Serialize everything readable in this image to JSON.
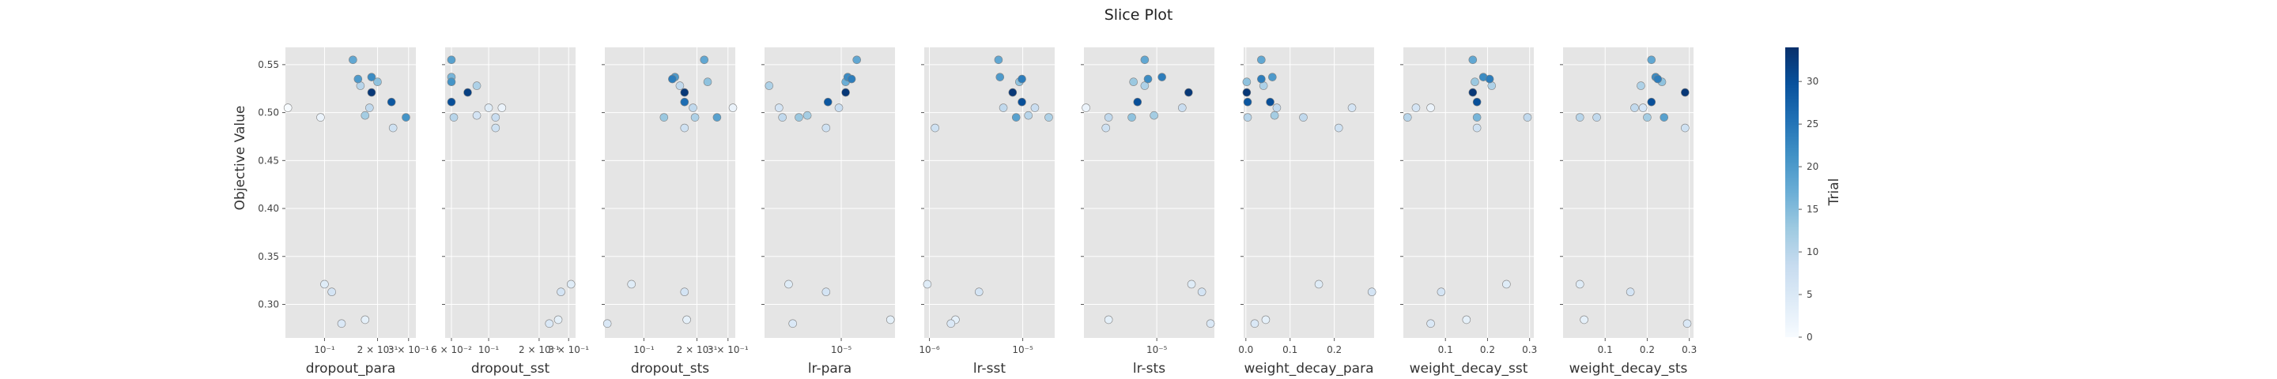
{
  "chart_data": {
    "type": "scatter",
    "title": "Slice Plot",
    "ylabel": "Objective Value",
    "ylim": [
      0.265,
      0.568
    ],
    "y_ticks": [
      0.3,
      0.35,
      0.4,
      0.45,
      0.5,
      0.55
    ],
    "y_tick_labels": [
      "0.30",
      "0.35",
      "0.40",
      "0.45",
      "0.50",
      "0.55"
    ],
    "grid": true,
    "colorbar": {
      "label": "Trial",
      "range": [
        0,
        34
      ],
      "ticks": [
        0,
        5,
        10,
        15,
        20,
        25,
        30
      ],
      "tick_labels": [
        "0",
        "5",
        "10",
        "15",
        "20",
        "25",
        "30"
      ],
      "colors": [
        "#f7fbff",
        "#deebf7",
        "#c6dbef",
        "#9ecae1",
        "#6baed6",
        "#4292c6",
        "#2171b5",
        "#08519c",
        "#08306b"
      ]
    },
    "panels": [
      {
        "xlabel": "dropout_para",
        "scale": "log",
        "xlim": [
          0.06,
          0.33
        ],
        "x_ticks": [
          0.1,
          0.2,
          0.3
        ],
        "x_tick_labels": [
          "10⁻¹",
          "2 × 10⁻¹",
          "3 × 10⁻¹"
        ],
        "points": [
          {
            "x": 0.062,
            "y": 0.505,
            "t": 0
          },
          {
            "x": 0.095,
            "y": 0.495,
            "t": 2
          },
          {
            "x": 0.1,
            "y": 0.321,
            "t": 4
          },
          {
            "x": 0.11,
            "y": 0.313,
            "t": 6
          },
          {
            "x": 0.125,
            "y": 0.28,
            "t": 5
          },
          {
            "x": 0.145,
            "y": 0.555,
            "t": 18
          },
          {
            "x": 0.155,
            "y": 0.535,
            "t": 20
          },
          {
            "x": 0.16,
            "y": 0.528,
            "t": 10
          },
          {
            "x": 0.17,
            "y": 0.497,
            "t": 12
          },
          {
            "x": 0.17,
            "y": 0.284,
            "t": 3
          },
          {
            "x": 0.18,
            "y": 0.505,
            "t": 9
          },
          {
            "x": 0.185,
            "y": 0.537,
            "t": 22
          },
          {
            "x": 0.185,
            "y": 0.521,
            "t": 33
          },
          {
            "x": 0.2,
            "y": 0.532,
            "t": 14
          },
          {
            "x": 0.24,
            "y": 0.511,
            "t": 29
          },
          {
            "x": 0.245,
            "y": 0.484,
            "t": 7
          },
          {
            "x": 0.29,
            "y": 0.495,
            "t": 21
          }
        ]
      },
      {
        "xlabel": "dropout_sst",
        "scale": "log",
        "xlim": [
          0.055,
          0.33
        ],
        "x_ticks": [
          0.06,
          0.1,
          0.2,
          0.3
        ],
        "x_tick_labels": [
          "6 × 10⁻²",
          "10⁻¹",
          "2 × 10⁻¹",
          "3 × 10⁻¹"
        ],
        "points": [
          {
            "x": 0.06,
            "y": 0.555,
            "t": 19
          },
          {
            "x": 0.06,
            "y": 0.537,
            "t": 16
          },
          {
            "x": 0.06,
            "y": 0.532,
            "t": 21
          },
          {
            "x": 0.06,
            "y": 0.511,
            "t": 30
          },
          {
            "x": 0.062,
            "y": 0.495,
            "t": 10
          },
          {
            "x": 0.075,
            "y": 0.521,
            "t": 32
          },
          {
            "x": 0.085,
            "y": 0.528,
            "t": 11
          },
          {
            "x": 0.085,
            "y": 0.497,
            "t": 6
          },
          {
            "x": 0.1,
            "y": 0.505,
            "t": 4
          },
          {
            "x": 0.11,
            "y": 0.495,
            "t": 8
          },
          {
            "x": 0.11,
            "y": 0.484,
            "t": 7
          },
          {
            "x": 0.12,
            "y": 0.505,
            "t": 2
          },
          {
            "x": 0.23,
            "y": 0.28,
            "t": 5
          },
          {
            "x": 0.26,
            "y": 0.284,
            "t": 3
          },
          {
            "x": 0.27,
            "y": 0.313,
            "t": 6
          },
          {
            "x": 0.31,
            "y": 0.321,
            "t": 4
          }
        ]
      },
      {
        "xlabel": "dropout_sts",
        "scale": "log",
        "xlim": [
          0.06,
          0.33
        ],
        "x_ticks": [
          0.1,
          0.2,
          0.3
        ],
        "x_tick_labels": [
          "10⁻¹",
          "2 × 10⁻¹",
          "3 × 10⁻¹"
        ],
        "points": [
          {
            "x": 0.062,
            "y": 0.28,
            "t": 5
          },
          {
            "x": 0.085,
            "y": 0.321,
            "t": 4
          },
          {
            "x": 0.13,
            "y": 0.495,
            "t": 13
          },
          {
            "x": 0.145,
            "y": 0.535,
            "t": 24
          },
          {
            "x": 0.15,
            "y": 0.537,
            "t": 20
          },
          {
            "x": 0.16,
            "y": 0.528,
            "t": 9
          },
          {
            "x": 0.17,
            "y": 0.521,
            "t": 33
          },
          {
            "x": 0.17,
            "y": 0.511,
            "t": 26
          },
          {
            "x": 0.17,
            "y": 0.484,
            "t": 7
          },
          {
            "x": 0.17,
            "y": 0.313,
            "t": 6
          },
          {
            "x": 0.175,
            "y": 0.284,
            "t": 3
          },
          {
            "x": 0.19,
            "y": 0.505,
            "t": 9
          },
          {
            "x": 0.195,
            "y": 0.495,
            "t": 11
          },
          {
            "x": 0.22,
            "y": 0.555,
            "t": 18
          },
          {
            "x": 0.23,
            "y": 0.532,
            "t": 14
          },
          {
            "x": 0.26,
            "y": 0.495,
            "t": 19
          },
          {
            "x": 0.32,
            "y": 0.505,
            "t": 2
          }
        ]
      },
      {
        "xlabel": "lr-para",
        "scale": "log",
        "xlim": [
          1.9e-06,
          3.2e-05
        ],
        "x_ticks": [
          1e-05
        ],
        "x_tick_labels": [
          "10⁻⁵"
        ],
        "points": [
          {
            "x": 2.1e-06,
            "y": 0.528,
            "t": 11
          },
          {
            "x": 2.6e-06,
            "y": 0.505,
            "t": 6
          },
          {
            "x": 2.8e-06,
            "y": 0.495,
            "t": 9
          },
          {
            "x": 3.2e-06,
            "y": 0.321,
            "t": 4
          },
          {
            "x": 3.5e-06,
            "y": 0.28,
            "t": 5
          },
          {
            "x": 4e-06,
            "y": 0.495,
            "t": 13
          },
          {
            "x": 4.8e-06,
            "y": 0.497,
            "t": 12
          },
          {
            "x": 7.2e-06,
            "y": 0.484,
            "t": 7
          },
          {
            "x": 7.2e-06,
            "y": 0.313,
            "t": 6
          },
          {
            "x": 7.5e-06,
            "y": 0.511,
            "t": 29
          },
          {
            "x": 9.5e-06,
            "y": 0.505,
            "t": 8
          },
          {
            "x": 1.1e-05,
            "y": 0.532,
            "t": 17
          },
          {
            "x": 1.1e-05,
            "y": 0.521,
            "t": 33
          },
          {
            "x": 1.15e-05,
            "y": 0.537,
            "t": 22
          },
          {
            "x": 1.25e-05,
            "y": 0.535,
            "t": 24
          },
          {
            "x": 1.4e-05,
            "y": 0.555,
            "t": 18
          },
          {
            "x": 2.9e-05,
            "y": 0.284,
            "t": 3
          }
        ]
      },
      {
        "xlabel": "lr-sst",
        "scale": "log",
        "xlim": [
          8.8e-07,
          2.2e-05
        ],
        "x_ticks": [
          1e-06,
          1e-05
        ],
        "x_tick_labels": [
          "10⁻⁶",
          "10⁻⁵"
        ],
        "points": [
          {
            "x": 9.5e-07,
            "y": 0.321,
            "t": 4
          },
          {
            "x": 1.15e-06,
            "y": 0.484,
            "t": 7
          },
          {
            "x": 1.7e-06,
            "y": 0.28,
            "t": 5
          },
          {
            "x": 1.9e-06,
            "y": 0.284,
            "t": 3
          },
          {
            "x": 3.4e-06,
            "y": 0.313,
            "t": 6
          },
          {
            "x": 5.5e-06,
            "y": 0.555,
            "t": 18
          },
          {
            "x": 5.7e-06,
            "y": 0.537,
            "t": 20
          },
          {
            "x": 6.2e-06,
            "y": 0.505,
            "t": 9
          },
          {
            "x": 7.8e-06,
            "y": 0.521,
            "t": 33
          },
          {
            "x": 8.5e-06,
            "y": 0.495,
            "t": 19
          },
          {
            "x": 9.2e-06,
            "y": 0.532,
            "t": 14
          },
          {
            "x": 9.8e-06,
            "y": 0.535,
            "t": 24
          },
          {
            "x": 9.8e-06,
            "y": 0.511,
            "t": 30
          },
          {
            "x": 1.15e-05,
            "y": 0.497,
            "t": 10
          },
          {
            "x": 1.35e-05,
            "y": 0.505,
            "t": 8
          },
          {
            "x": 1.9e-05,
            "y": 0.495,
            "t": 11
          }
        ]
      },
      {
        "xlabel": "lr-sts",
        "scale": "log",
        "xlim": [
          2.6e-06,
          2.9e-05
        ],
        "x_ticks": [
          1e-05
        ],
        "x_tick_labels": [
          "10⁻⁵"
        ],
        "points": [
          {
            "x": 2.7e-06,
            "y": 0.505,
            "t": 2
          },
          {
            "x": 3.9e-06,
            "y": 0.484,
            "t": 7
          },
          {
            "x": 4.1e-06,
            "y": 0.495,
            "t": 9
          },
          {
            "x": 4.1e-06,
            "y": 0.284,
            "t": 3
          },
          {
            "x": 6.3e-06,
            "y": 0.495,
            "t": 14
          },
          {
            "x": 6.5e-06,
            "y": 0.532,
            "t": 13
          },
          {
            "x": 7e-06,
            "y": 0.511,
            "t": 30
          },
          {
            "x": 8e-06,
            "y": 0.555,
            "t": 18
          },
          {
            "x": 8e-06,
            "y": 0.528,
            "t": 11
          },
          {
            "x": 8.5e-06,
            "y": 0.535,
            "t": 22
          },
          {
            "x": 9.5e-06,
            "y": 0.497,
            "t": 12
          },
          {
            "x": 1.1e-05,
            "y": 0.537,
            "t": 24
          },
          {
            "x": 1.6e-05,
            "y": 0.505,
            "t": 8
          },
          {
            "x": 1.8e-05,
            "y": 0.521,
            "t": 33
          },
          {
            "x": 1.9e-05,
            "y": 0.321,
            "t": 4
          },
          {
            "x": 2.3e-05,
            "y": 0.313,
            "t": 6
          },
          {
            "x": 2.7e-05,
            "y": 0.28,
            "t": 5
          }
        ]
      },
      {
        "xlabel": "weight_decay_para",
        "scale": "linear",
        "xlim": [
          -0.005,
          0.29
        ],
        "x_ticks": [
          0.0,
          0.1,
          0.2
        ],
        "x_tick_labels": [
          "0.0",
          "0.1",
          "0.2"
        ],
        "points": [
          {
            "x": 0.002,
            "y": 0.532,
            "t": 14
          },
          {
            "x": 0.002,
            "y": 0.521,
            "t": 33
          },
          {
            "x": 0.004,
            "y": 0.511,
            "t": 29
          },
          {
            "x": 0.004,
            "y": 0.495,
            "t": 10
          },
          {
            "x": 0.02,
            "y": 0.28,
            "t": 5
          },
          {
            "x": 0.035,
            "y": 0.555,
            "t": 18
          },
          {
            "x": 0.035,
            "y": 0.535,
            "t": 24
          },
          {
            "x": 0.04,
            "y": 0.528,
            "t": 11
          },
          {
            "x": 0.045,
            "y": 0.284,
            "t": 3
          },
          {
            "x": 0.055,
            "y": 0.511,
            "t": 30
          },
          {
            "x": 0.06,
            "y": 0.537,
            "t": 20
          },
          {
            "x": 0.065,
            "y": 0.497,
            "t": 12
          },
          {
            "x": 0.07,
            "y": 0.505,
            "t": 9
          },
          {
            "x": 0.13,
            "y": 0.495,
            "t": 9
          },
          {
            "x": 0.165,
            "y": 0.321,
            "t": 4
          },
          {
            "x": 0.21,
            "y": 0.484,
            "t": 7
          },
          {
            "x": 0.24,
            "y": 0.505,
            "t": 6
          },
          {
            "x": 0.285,
            "y": 0.313,
            "t": 6
          }
        ]
      },
      {
        "xlabel": "weight_decay_sst",
        "scale": "linear",
        "xlim": [
          0.0,
          0.31
        ],
        "x_ticks": [
          0.1,
          0.2,
          0.3
        ],
        "x_tick_labels": [
          "0.1",
          "0.2",
          "0.3"
        ],
        "points": [
          {
            "x": 0.01,
            "y": 0.495,
            "t": 10
          },
          {
            "x": 0.03,
            "y": 0.505,
            "t": 6
          },
          {
            "x": 0.065,
            "y": 0.505,
            "t": 2
          },
          {
            "x": 0.065,
            "y": 0.28,
            "t": 5
          },
          {
            "x": 0.09,
            "y": 0.313,
            "t": 6
          },
          {
            "x": 0.15,
            "y": 0.284,
            "t": 3
          },
          {
            "x": 0.165,
            "y": 0.555,
            "t": 18
          },
          {
            "x": 0.165,
            "y": 0.521,
            "t": 33
          },
          {
            "x": 0.17,
            "y": 0.532,
            "t": 13
          },
          {
            "x": 0.175,
            "y": 0.511,
            "t": 30
          },
          {
            "x": 0.175,
            "y": 0.495,
            "t": 16
          },
          {
            "x": 0.175,
            "y": 0.484,
            "t": 7
          },
          {
            "x": 0.19,
            "y": 0.537,
            "t": 22
          },
          {
            "x": 0.205,
            "y": 0.535,
            "t": 24
          },
          {
            "x": 0.21,
            "y": 0.528,
            "t": 11
          },
          {
            "x": 0.245,
            "y": 0.321,
            "t": 4
          },
          {
            "x": 0.295,
            "y": 0.495,
            "t": 9
          }
        ]
      },
      {
        "xlabel": "weight_decay_sts",
        "scale": "linear",
        "xlim": [
          0.0,
          0.31
        ],
        "x_ticks": [
          0.1,
          0.2,
          0.3
        ],
        "x_tick_labels": [
          "0.1",
          "0.2",
          "0.3"
        ],
        "points": [
          {
            "x": 0.04,
            "y": 0.495,
            "t": 10
          },
          {
            "x": 0.04,
            "y": 0.321,
            "t": 4
          },
          {
            "x": 0.05,
            "y": 0.284,
            "t": 3
          },
          {
            "x": 0.08,
            "y": 0.495,
            "t": 9
          },
          {
            "x": 0.16,
            "y": 0.313,
            "t": 6
          },
          {
            "x": 0.17,
            "y": 0.505,
            "t": 9
          },
          {
            "x": 0.185,
            "y": 0.528,
            "t": 11
          },
          {
            "x": 0.19,
            "y": 0.505,
            "t": 6
          },
          {
            "x": 0.2,
            "y": 0.495,
            "t": 12
          },
          {
            "x": 0.21,
            "y": 0.555,
            "t": 18
          },
          {
            "x": 0.21,
            "y": 0.511,
            "t": 30
          },
          {
            "x": 0.22,
            "y": 0.537,
            "t": 22
          },
          {
            "x": 0.225,
            "y": 0.535,
            "t": 24
          },
          {
            "x": 0.235,
            "y": 0.532,
            "t": 14
          },
          {
            "x": 0.24,
            "y": 0.495,
            "t": 19
          },
          {
            "x": 0.29,
            "y": 0.521,
            "t": 33
          },
          {
            "x": 0.29,
            "y": 0.484,
            "t": 7
          },
          {
            "x": 0.295,
            "y": 0.28,
            "t": 5
          }
        ]
      }
    ]
  }
}
